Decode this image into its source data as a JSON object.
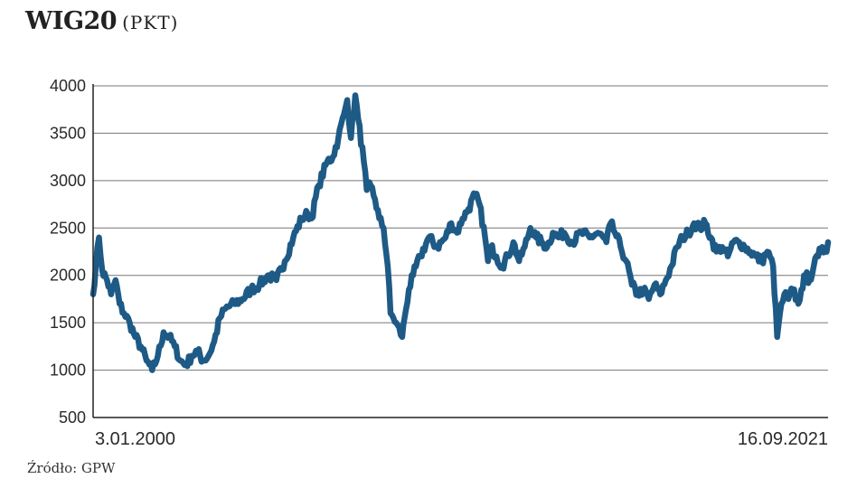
{
  "header": {
    "title": "WIG20",
    "unit": "(PKT)"
  },
  "footer": {
    "source": "Źródło: GPW"
  },
  "colors": {
    "line": "#1e5a86",
    "grid": "#777777",
    "axis": "#222222"
  },
  "chart_data": {
    "type": "line",
    "title": "WIG20",
    "ylabel": "",
    "xlabel": "",
    "ylim": [
      500,
      4000
    ],
    "yticks": [
      500,
      1000,
      1500,
      2000,
      2500,
      3000,
      3500,
      4000
    ],
    "grid": true,
    "xlim": [
      "2000-01-03",
      "2021-09-16"
    ],
    "x_tick_labels": [
      {
        "date": "2000-01-03",
        "label": "3.01.2000"
      },
      {
        "date": "2021-09-16",
        "label": "16.09.2021"
      }
    ],
    "series": [
      {
        "name": "",
        "x": [
          "2000-01-03",
          "2000-02-01",
          "2000-03-06",
          "2000-04-10",
          "2000-06-01",
          "2000-07-15",
          "2000-09-01",
          "2000-10-15",
          "2000-12-01",
          "2001-02-01",
          "2001-04-01",
          "2001-06-01",
          "2001-08-01",
          "2001-10-01",
          "2001-12-01",
          "2002-02-01",
          "2002-04-01",
          "2002-06-01",
          "2002-08-01",
          "2002-10-01",
          "2002-12-01",
          "2003-02-01",
          "2003-04-01",
          "2003-06-01",
          "2003-08-01",
          "2003-10-01",
          "2003-12-01",
          "2004-03-01",
          "2004-06-01",
          "2004-09-01",
          "2004-12-01",
          "2005-03-01",
          "2005-06-01",
          "2005-09-01",
          "2005-12-01",
          "2006-03-01",
          "2006-05-05",
          "2006-06-15",
          "2006-09-01",
          "2006-12-01",
          "2007-02-01",
          "2007-04-01",
          "2007-06-01",
          "2007-07-06",
          "2007-08-15",
          "2007-10-01",
          "2007-11-01",
          "2008-01-01",
          "2008-02-01",
          "2008-03-15",
          "2008-05-01",
          "2008-06-15",
          "2008-08-01",
          "2008-09-15",
          "2008-10-15",
          "2008-11-15",
          "2008-12-15",
          "2009-02-18",
          "2009-03-15",
          "2009-05-01",
          "2009-06-15",
          "2009-09-01",
          "2009-12-01",
          "2010-03-01",
          "2010-06-01",
          "2010-08-01",
          "2010-10-01",
          "2010-12-01",
          "2011-02-01",
          "2011-04-15",
          "2011-06-01",
          "2011-08-01",
          "2011-09-01",
          "2011-10-01",
          "2011-12-01",
          "2012-02-01",
          "2012-04-01",
          "2012-06-01",
          "2012-08-01",
          "2012-10-01",
          "2012-12-01",
          "2013-02-01",
          "2013-04-01",
          "2013-06-01",
          "2013-08-01",
          "2013-10-01",
          "2013-12-01",
          "2014-03-01",
          "2014-06-01",
          "2014-09-01",
          "2014-12-01",
          "2015-03-01",
          "2015-04-15",
          "2015-06-01",
          "2015-08-01",
          "2015-10-01",
          "2015-12-01",
          "2016-02-01",
          "2016-04-01",
          "2016-06-01",
          "2016-08-01",
          "2016-10-01",
          "2016-12-01",
          "2017-02-01",
          "2017-04-01",
          "2017-06-01",
          "2017-08-01",
          "2017-10-01",
          "2017-12-01",
          "2018-02-01",
          "2018-04-01",
          "2018-06-01",
          "2018-08-01",
          "2018-10-01",
          "2018-12-01",
          "2019-02-01",
          "2019-04-01",
          "2019-06-01",
          "2019-08-01",
          "2019-10-01",
          "2019-12-01",
          "2020-02-01",
          "2020-03-16",
          "2020-04-15",
          "2020-06-01",
          "2020-07-15",
          "2020-09-01",
          "2020-10-30",
          "2020-12-01",
          "2021-01-15",
          "2021-03-01",
          "2021-04-15",
          "2021-06-01",
          "2021-07-15",
          "2021-08-15",
          "2021-09-16"
        ],
        "values": [
          1800,
          2100,
          2400,
          2050,
          1950,
          1800,
          1950,
          1700,
          1600,
          1500,
          1350,
          1250,
          1100,
          1000,
          1150,
          1400,
          1350,
          1250,
          1100,
          1050,
          1150,
          1200,
          1100,
          1150,
          1300,
          1550,
          1650,
          1700,
          1750,
          1850,
          1900,
          2000,
          1950,
          2150,
          2400,
          2600,
          2650,
          2600,
          2950,
          3200,
          3250,
          3450,
          3700,
          3850,
          3450,
          3900,
          3650,
          3200,
          2900,
          2950,
          2800,
          2600,
          2500,
          2100,
          1600,
          1550,
          1500,
          1350,
          1550,
          1850,
          2000,
          2200,
          2400,
          2300,
          2400,
          2550,
          2450,
          2600,
          2700,
          2850,
          2750,
          2400,
          2150,
          2300,
          2200,
          2100,
          2200,
          2350,
          2150,
          2300,
          2500,
          2400,
          2350,
          2300,
          2450,
          2400,
          2450,
          2350,
          2450,
          2400,
          2450,
          2350,
          2550,
          2450,
          2300,
          2150,
          1900,
          1800,
          1850,
          1750,
          1900,
          1800,
          1950,
          2100,
          2300,
          2400,
          2450,
          2550,
          2500,
          2550,
          2400,
          2250,
          2300,
          2200,
          2350,
          2350,
          2300,
          2250,
          2200,
          2150,
          2250,
          2100,
          1350,
          1600,
          1800,
          1750,
          1850,
          1700,
          1850,
          2000,
          1950,
          2100,
          2200,
          2300,
          2250,
          2350
        ]
      }
    ]
  }
}
